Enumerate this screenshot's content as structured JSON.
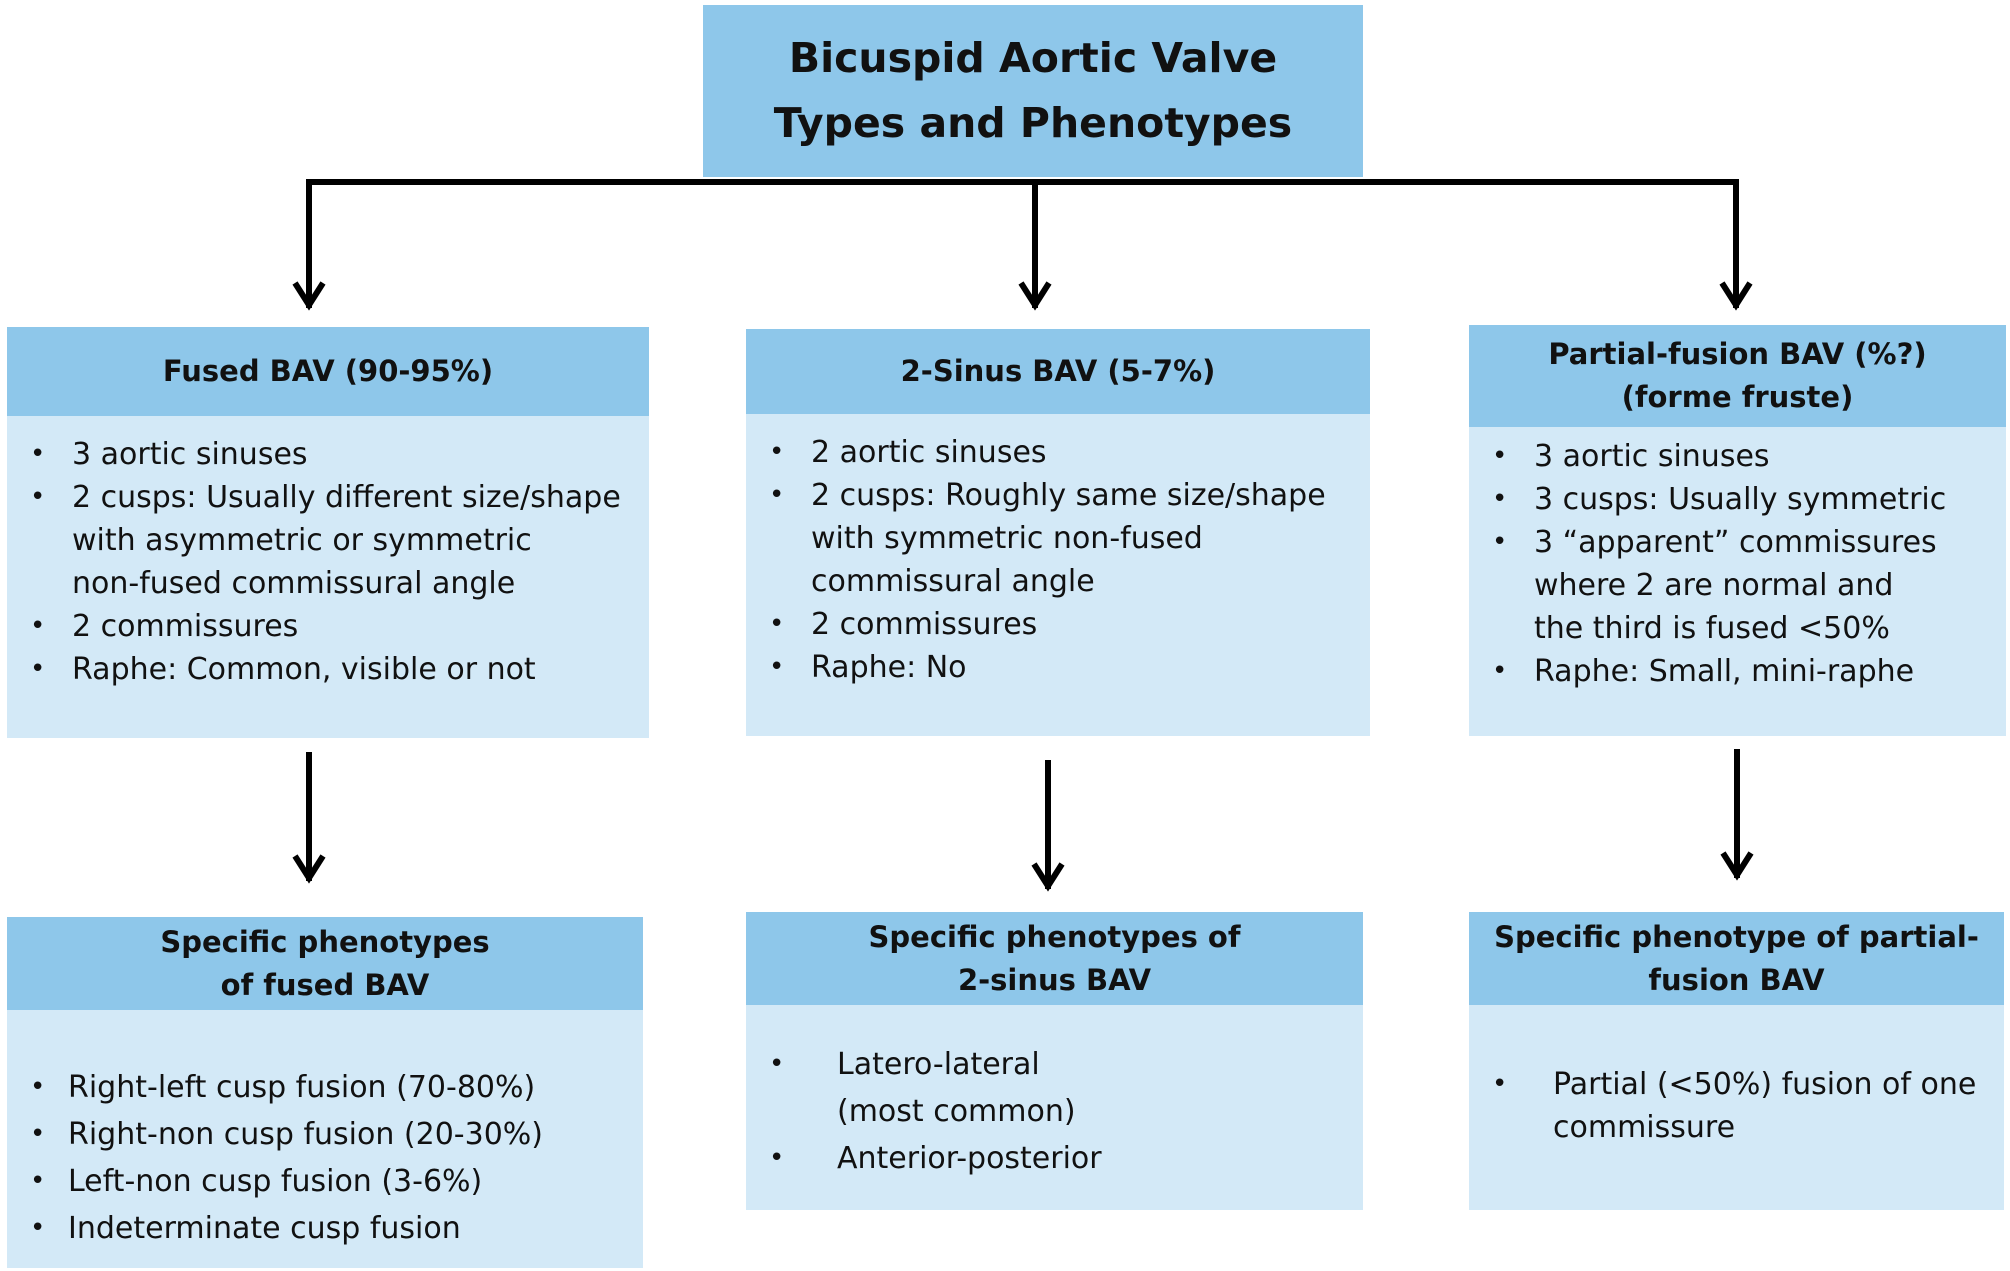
{
  "title": {
    "line1": "Bicuspid Aortic Valve",
    "line2": "Types and Phenotypes"
  },
  "types": [
    {
      "header": [
        "Fused BAV (90-95%)"
      ],
      "items": [
        [
          "3 aortic sinuses"
        ],
        [
          "2 cusps: Usually different size/shape",
          "with asymmetric or symmetric",
          "non-fused commissural angle"
        ],
        [
          "2 commissures"
        ],
        [
          "Raphe: Common, visible or not"
        ]
      ]
    },
    {
      "header": [
        "2-Sinus BAV (5-7%)"
      ],
      "items": [
        [
          "2 aortic sinuses"
        ],
        [
          "2 cusps: Roughly same size/shape",
          "with symmetric non-fused",
          "commissural angle"
        ],
        [
          "2 commissures"
        ],
        [
          "Raphe: No"
        ]
      ]
    },
    {
      "header": [
        "Partial-fusion BAV (%?)",
        "(forme fruste)"
      ],
      "items": [
        [
          "3 aortic sinuses"
        ],
        [
          "3 cusps: Usually symmetric"
        ],
        [
          "3 “apparent” commissures",
          "where 2 are normal and",
          "the third is fused <50%"
        ],
        [
          "Raphe: Small, mini-raphe"
        ]
      ]
    }
  ],
  "phenotypes": [
    {
      "header": [
        "Specific phenotypes",
        "of fused BAV"
      ],
      "items": [
        [
          "Right-left cusp fusion (70-80%)"
        ],
        [
          "Right-non cusp fusion (20-30%)"
        ],
        [
          "Left-non cusp fusion (3-6%)"
        ],
        [
          "Indeterminate cusp fusion"
        ]
      ]
    },
    {
      "header": [
        "Specific phenotypes of",
        "2-sinus BAV"
      ],
      "items": [
        [
          "Latero-lateral",
          "(most common)"
        ],
        [
          "Anterior-posterior"
        ]
      ]
    },
    {
      "header": [
        "Specific phenotype of partial-",
        "fusion BAV"
      ],
      "items": [
        [
          "Partial (<50%) fusion of one",
          "commissure"
        ]
      ]
    }
  ],
  "colors": {
    "header_fill": "#8ec7ea",
    "body_fill": "#d3e9f7",
    "line": "#000000"
  }
}
